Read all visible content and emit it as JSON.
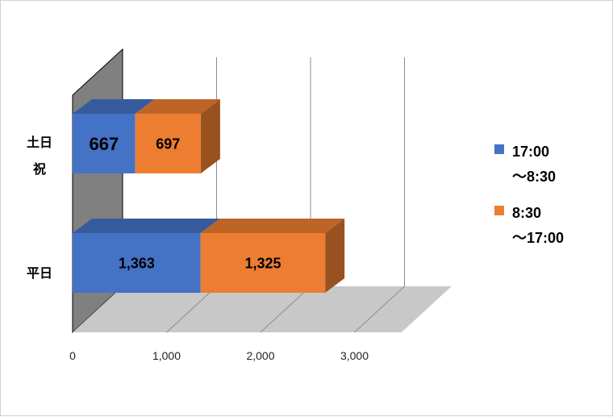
{
  "chart_data": {
    "type": "bar",
    "orientation": "horizontal",
    "stacked": true,
    "three_d": true,
    "categories": [
      "土日\n祝",
      "平日"
    ],
    "series": [
      {
        "name": "17:00\n～8:30",
        "color": "#4472C4",
        "values": [
          667,
          1363
        ]
      },
      {
        "name": "8:30\n～17:00",
        "color": "#ED7D31",
        "values": [
          697,
          1325
        ]
      }
    ],
    "data_labels": [
      [
        "667",
        "1,363"
      ],
      [
        "697",
        "1,325"
      ]
    ],
    "xticks": [
      "0",
      "1,000",
      "2,000",
      "3,000"
    ],
    "xlim": [
      0,
      3500
    ],
    "grid": true,
    "legend": "right"
  }
}
